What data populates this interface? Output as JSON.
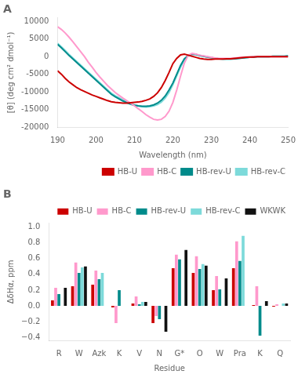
{
  "chart_data": [
    {
      "type": "line",
      "title": "A",
      "xlabel": "Wavelength (nm)",
      "ylabel": "[θ] (deg cm² dmol⁻¹)",
      "x": [
        190,
        191,
        192,
        193,
        194,
        195,
        196,
        197,
        198,
        199,
        200,
        201,
        202,
        203,
        204,
        205,
        206,
        207,
        208,
        209,
        210,
        211,
        212,
        213,
        214,
        215,
        216,
        217,
        218,
        219,
        220,
        221,
        222,
        223,
        224,
        225,
        226,
        227,
        228,
        229,
        230,
        231,
        232,
        233,
        234,
        235,
        236,
        237,
        238,
        239,
        240,
        241,
        242,
        243,
        244,
        245,
        246,
        247,
        248,
        249,
        250
      ],
      "xlim": [
        190,
        250
      ],
      "xticks": [
        190,
        200,
        210,
        220,
        230,
        240,
        250
      ],
      "ylim": [
        -20000,
        11000
      ],
      "yticks": [
        -20000,
        -15000,
        -10000,
        -5000,
        0,
        5000,
        10000
      ],
      "grid": false,
      "legend": "lower right",
      "series": [
        {
          "name": "HB-U",
          "color": "#cc0000",
          "values": [
            -4000,
            -5000,
            -6200,
            -7200,
            -8000,
            -8800,
            -9400,
            -9900,
            -10400,
            -10900,
            -11300,
            -11700,
            -12100,
            -12500,
            -12800,
            -13000,
            -13100,
            -13200,
            -13200,
            -13100,
            -13000,
            -12900,
            -12700,
            -12400,
            -12000,
            -11300,
            -10300,
            -8800,
            -6800,
            -4500,
            -2000,
            -500,
            500,
            700,
            400,
            100,
            -200,
            -500,
            -700,
            -800,
            -800,
            -700,
            -700,
            -700,
            -600,
            -600,
            -500,
            -400,
            -300,
            -200,
            -100,
            -100,
            0,
            0,
            0,
            0,
            0,
            0,
            0,
            0,
            0
          ]
        },
        {
          "name": "HB-C",
          "color": "#ff99cc",
          "values": [
            8500,
            7700,
            6700,
            5500,
            4200,
            2800,
            1400,
            0,
            -1600,
            -3000,
            -4500,
            -5800,
            -7000,
            -8200,
            -9200,
            -10200,
            -11000,
            -11800,
            -12500,
            -13200,
            -14000,
            -14800,
            -15600,
            -16500,
            -17200,
            -17800,
            -18000,
            -17800,
            -17000,
            -15500,
            -13000,
            -9500,
            -5500,
            -1800,
            400,
            900,
            700,
            400,
            200,
            0,
            -200,
            -400,
            -500,
            -500,
            -500,
            -500,
            -400,
            -300,
            -200,
            -100,
            -100,
            0,
            0,
            0,
            0,
            0,
            0,
            0,
            0,
            0,
            0
          ]
        },
        {
          "name": "HB-rev-U",
          "color": "#008b8b",
          "values": [
            3500,
            2500,
            1400,
            300,
            -700,
            -1700,
            -2700,
            -3700,
            -4700,
            -5700,
            -6700,
            -7700,
            -8700,
            -9700,
            -10700,
            -11400,
            -12000,
            -12600,
            -13100,
            -13500,
            -13800,
            -14000,
            -14100,
            -14100,
            -14000,
            -13700,
            -13200,
            -12400,
            -11200,
            -9500,
            -7500,
            -5000,
            -2500,
            -600,
            300,
            700,
            600,
            300,
            100,
            -100,
            -300,
            -500,
            -600,
            -700,
            -700,
            -700,
            -600,
            -500,
            -400,
            -300,
            -200,
            -100,
            0,
            0,
            0,
            0,
            100,
            100,
            100,
            100,
            200
          ]
        },
        {
          "name": "HB-rev-C",
          "color": "#7ddada",
          "values": [
            3800,
            2800,
            1700,
            600,
            -400,
            -1400,
            -2400,
            -3400,
            -4400,
            -5400,
            -6400,
            -7400,
            -8400,
            -9400,
            -10400,
            -11100,
            -11700,
            -12300,
            -12800,
            -13300,
            -13700,
            -14000,
            -14200,
            -14300,
            -14200,
            -14000,
            -13600,
            -12900,
            -11800,
            -10200,
            -8000,
            -5500,
            -3000,
            -900,
            300,
            700,
            600,
            300,
            100,
            -100,
            -300,
            -500,
            -600,
            -700,
            -700,
            -700,
            -600,
            -500,
            -400,
            -300,
            -200,
            -100,
            0,
            0,
            0,
            0,
            100,
            100,
            100,
            100,
            200
          ]
        }
      ]
    },
    {
      "type": "bar",
      "title": "B",
      "xlabel": "Residue",
      "ylabel": "ΔδHα, ppm",
      "categories": [
        "R",
        "W",
        "Azk",
        "K",
        "V",
        "N",
        "G*",
        "O",
        "W",
        "Pra",
        "K",
        "Q"
      ],
      "ylim": [
        -0.44,
        1.05
      ],
      "yticks": [
        {
          "value": -0.4,
          "label": "−0.4"
        },
        {
          "value": -0.2,
          "label": "−0.2"
        },
        {
          "value": 0,
          "label": "0.0"
        },
        {
          "value": 0.2,
          "label": "0.2"
        },
        {
          "value": 0.4,
          "label": "0.4"
        },
        {
          "value": 0.6,
          "label": "0.6"
        },
        {
          "value": 0.8,
          "label": "0.8"
        },
        {
          "value": 1,
          "label": "1.0"
        }
      ],
      "grid": false,
      "legend": "upper right",
      "series": [
        {
          "name": "HB-U",
          "color": "#cc0000",
          "values": [
            0.07,
            0.25,
            0.27,
            -0.02,
            0.03,
            -0.22,
            0.48,
            0.42,
            0.2,
            0.48,
            0.01,
            -0.01
          ]
        },
        {
          "name": "HB-C",
          "color": "#ff99cc",
          "values": [
            0.23,
            0.55,
            0.45,
            -0.22,
            0.12,
            -0.13,
            0.65,
            0.63,
            0.38,
            0.82,
            0.25,
            0.02
          ]
        },
        {
          "name": "HB-rev-U",
          "color": "#008b8b",
          "values": [
            0.15,
            0.42,
            0.34,
            0.2,
            0.02,
            -0.17,
            0.59,
            0.47,
            0.21,
            0.57,
            -0.38,
            0.0
          ]
        },
        {
          "name": "HB-rev-C",
          "color": "#7ddada",
          "values": [
            0.0,
            0.49,
            0.42,
            0.0,
            0.05,
            0.0,
            0.0,
            0.53,
            0.0,
            0.89,
            0.0,
            0.03
          ]
        },
        {
          "name": "WKWK",
          "color": "#111111",
          "values": [
            0.23,
            0.5,
            0.0,
            0.0,
            0.05,
            -0.33,
            0.71,
            0.51,
            0.35,
            0.0,
            0.06,
            0.03
          ]
        }
      ]
    }
  ]
}
